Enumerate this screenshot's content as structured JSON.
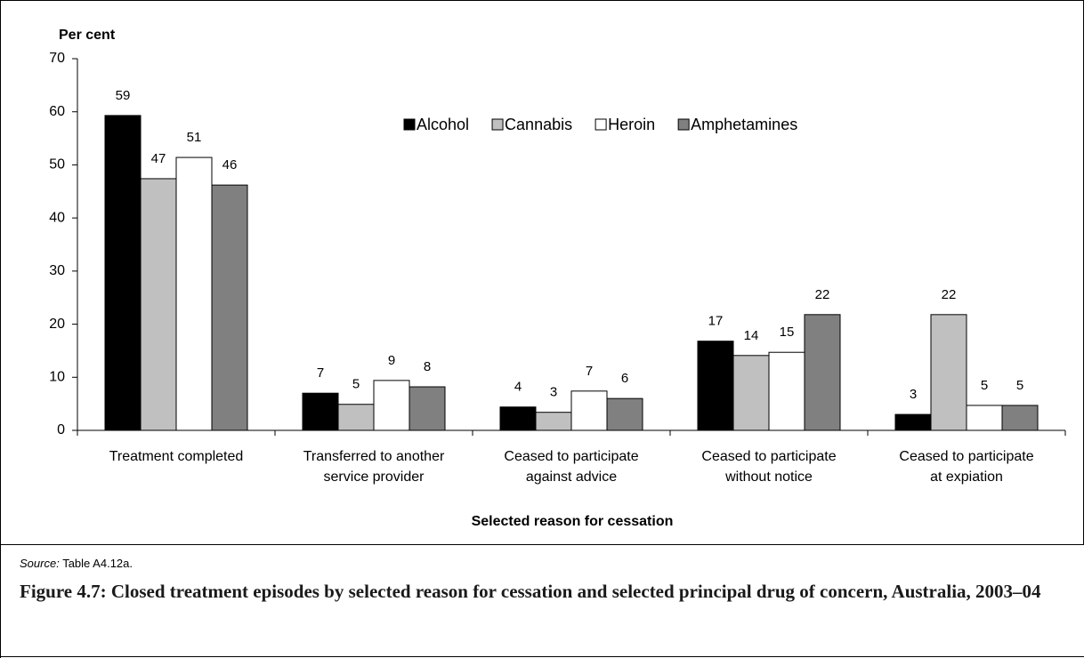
{
  "chart_data": {
    "type": "bar",
    "y_label": "Per cent",
    "x_label": "Selected reason for cessation",
    "categories": [
      [
        "Treatment completed"
      ],
      [
        "Transferred to another",
        "service provider"
      ],
      [
        "Ceased to participate",
        "against advice"
      ],
      [
        "Ceased to participate",
        "without notice"
      ],
      [
        "Ceased to participate",
        "at expiation"
      ]
    ],
    "series": [
      {
        "name": "Alcohol",
        "color": "#000000",
        "values": [
          59.3,
          7.0,
          4.4,
          16.8,
          3.0
        ],
        "value_labels": [
          "59",
          "7",
          "4",
          "17",
          "3"
        ]
      },
      {
        "name": "Cannabis",
        "color": "#c0c0c0",
        "values": [
          47.4,
          4.9,
          3.4,
          14.1,
          21.8
        ],
        "value_labels": [
          "47",
          "5",
          "3",
          "14",
          "22"
        ]
      },
      {
        "name": "Heroin",
        "color": "#ffffff",
        "values": [
          51.4,
          9.4,
          7.4,
          14.7,
          4.7
        ],
        "value_labels": [
          "51",
          "9",
          "7",
          "15",
          "5"
        ]
      },
      {
        "name": "Amphetamines",
        "color": "#808080",
        "values": [
          46.2,
          8.2,
          6.0,
          21.8,
          4.7
        ],
        "value_labels": [
          "46",
          "8",
          "6",
          "22",
          "5"
        ]
      }
    ],
    "ylim": [
      0,
      70
    ],
    "yticks": [
      0,
      10,
      20,
      30,
      40,
      50,
      60,
      70
    ],
    "grid": false
  },
  "source": {
    "label": "Source:",
    "text": "Table A4.12a."
  },
  "caption": "Figure 4.7: Closed treatment episodes by selected reason for cessation and selected principal drug of concern, Australia, 2003–04"
}
